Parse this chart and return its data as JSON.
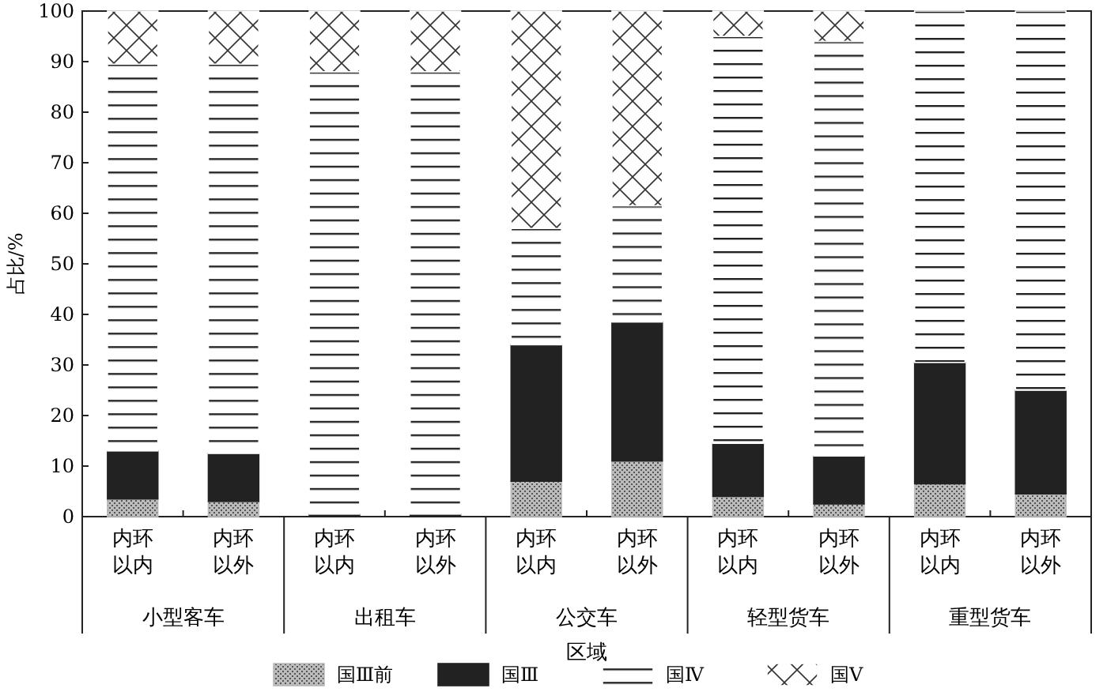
{
  "chart_data": {
    "type": "bar",
    "stacked": true,
    "ylabel": "占比/%",
    "xlabel": "区域",
    "categories": [
      "内环以内",
      "内环以外",
      "内环以内",
      "内环以外",
      "内环以内",
      "内环以外",
      "内环以内",
      "内环以外",
      "内环以内",
      "内环以外"
    ],
    "annotations": [
      "小型客车",
      "出租车",
      "公交车",
      "轻型货车",
      "重型货车"
    ],
    "series": [
      {
        "name": "国Ⅲ前",
        "color": "#bbbbbb",
        "values": [
          3.5,
          3,
          0,
          0,
          7,
          11,
          4,
          2.5,
          6.5,
          4.5
        ]
      },
      {
        "name": "国Ⅲ",
        "color": "#222222",
        "values": [
          9.5,
          9.5,
          0.5,
          0.5,
          27,
          27.5,
          10.5,
          9.5,
          24,
          20.5
        ]
      },
      {
        "name": "国Ⅳ",
        "color": "#ffffff",
        "values": [
          76.5,
          77,
          87.5,
          87.5,
          23,
          23,
          80.5,
          82,
          69.5,
          75
        ]
      },
      {
        "name": "国Ⅴ",
        "color": "#ffffff",
        "values": [
          10.5,
          10.5,
          12,
          12,
          43,
          38.5,
          5,
          6,
          0,
          0
        ]
      }
    ],
    "ylim": [
      0,
      100
    ],
    "yticks": [
      0,
      10,
      20,
      30,
      40,
      50,
      60,
      70,
      80,
      90,
      100
    ],
    "legend": "bottom"
  }
}
